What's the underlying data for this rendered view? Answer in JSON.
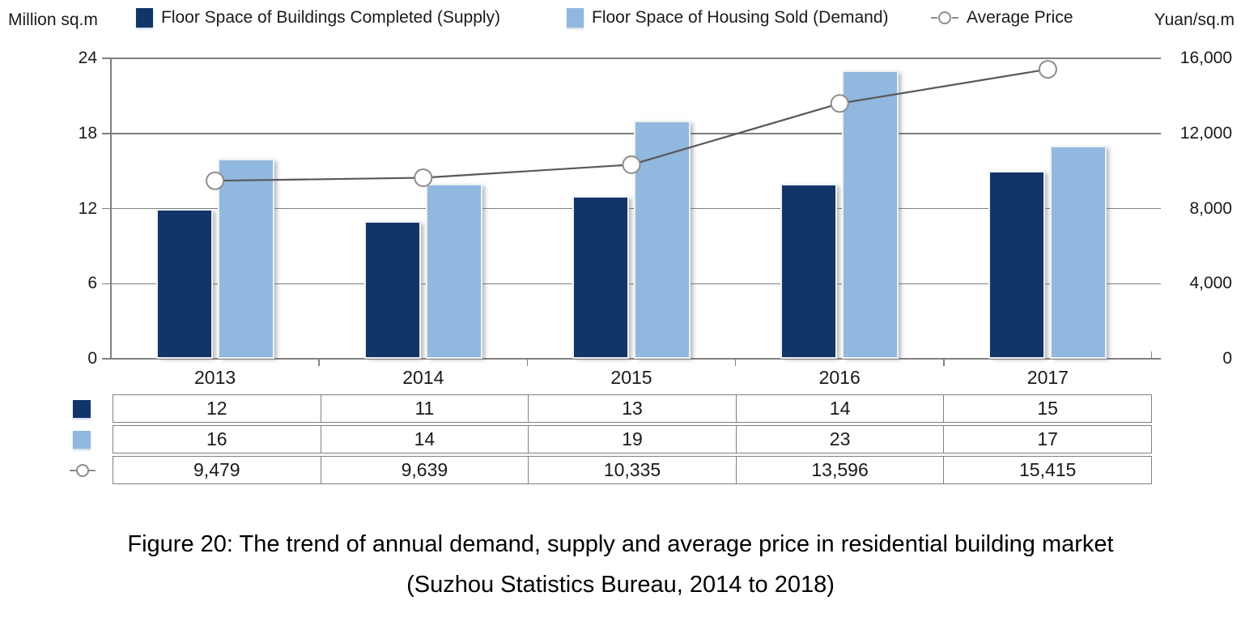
{
  "chart_data": {
    "type": "combo-bar-line",
    "categories": [
      "2013",
      "2014",
      "2015",
      "2016",
      "2017"
    ],
    "series": [
      {
        "name": "Floor Space of Buildings Completed (Supply)",
        "type": "bar",
        "axis": "left",
        "color": "#113569",
        "values": [
          12,
          11,
          13,
          14,
          15
        ]
      },
      {
        "name": "Floor Space of Housing Sold (Demand)",
        "type": "bar",
        "axis": "left",
        "color": "#91b8de",
        "values": [
          16,
          14,
          19,
          23,
          17
        ]
      },
      {
        "name": "Average Price",
        "type": "line",
        "axis": "right",
        "color": "#595959",
        "marker": {
          "shape": "circle",
          "fill": "#ffffff",
          "stroke": "#8c8c8c"
        },
        "values": [
          9479,
          9639,
          10335,
          13596,
          15415
        ],
        "display": [
          "9,479",
          "9,639",
          "10,335",
          "13,596",
          "15,415"
        ]
      }
    ],
    "left_axis": {
      "title": "Million sq.m",
      "ticks": [
        0,
        6,
        12,
        18,
        24
      ],
      "min": 0,
      "max": 24
    },
    "right_axis": {
      "title": "Yuan/sq.m",
      "ticks": [
        0,
        4000,
        8000,
        12000,
        16000
      ],
      "tick_display": [
        "0",
        "4,000",
        "8,000",
        "12,000",
        "16,000"
      ],
      "min": 0,
      "max": 16000
    },
    "grid": true,
    "grid_color": "#808080",
    "legend_position": "top",
    "data_table_shown": true
  },
  "caption": {
    "line1": "Figure 20: The trend of annual demand, supply and average price in residential building market",
    "line2": "(Suzhou Statistics Bureau, 2014 to 2018)"
  }
}
